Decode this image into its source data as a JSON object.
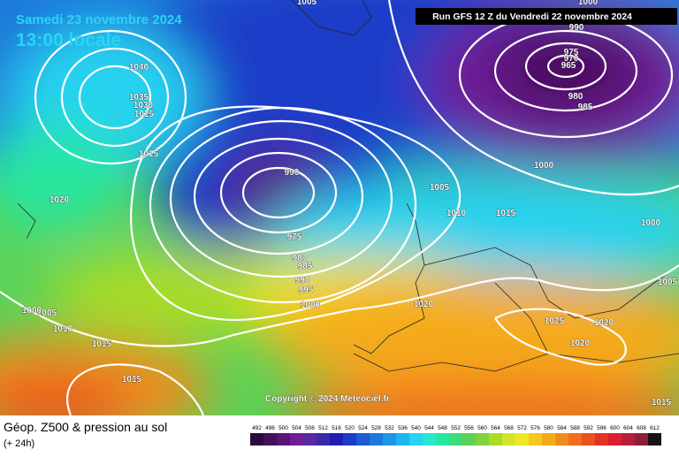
{
  "header": {
    "date": "Samedi 23 novembre 2024",
    "time": "13:00 locale",
    "run": "Run GFS 12 Z du Vendredi 22 novembre 2024"
  },
  "copyright": "Copyright © 2024 Meteociel.fr",
  "footer": {
    "title": "Géop. Z500 & pression au sol",
    "lead": "(+ 24h)"
  },
  "scale": {
    "labels": [
      492,
      496,
      500,
      504,
      508,
      512,
      516,
      520,
      524,
      528,
      532,
      536,
      540,
      544,
      548,
      552,
      556,
      560,
      564,
      568,
      572,
      576,
      580,
      584,
      588,
      592,
      596,
      600,
      604,
      608,
      612
    ],
    "colors": [
      "#2d0a3c",
      "#460f5a",
      "#5a1478",
      "#6e1e96",
      "#5a28a0",
      "#3c28aa",
      "#1e1eb4",
      "#1e3cc8",
      "#1e5ad2",
      "#1e78dc",
      "#1e96e6",
      "#1eb4f0",
      "#28d2f0",
      "#28e6d2",
      "#28e6a0",
      "#3cdc78",
      "#5ad25a",
      "#82d23c",
      "#aadc28",
      "#d2e628",
      "#f0e628",
      "#f5c81e",
      "#f5aa1e",
      "#f08c1e",
      "#f06e1e",
      "#eb501e",
      "#e63223",
      "#dc1e32",
      "#b41e3c",
      "#8c1e3c",
      "#141414"
    ]
  },
  "isobars": [
    1040,
    1035,
    1030,
    1025,
    1015,
    1020,
    1005,
    1000,
    990,
    975,
    970,
    965,
    980,
    985,
    1000,
    1005,
    1010,
    1015,
    1000,
    1005,
    975,
    980,
    985,
    990,
    995,
    1000,
    1020,
    1025,
    1020,
    1020,
    1005,
    1010,
    1015,
    1015,
    1015,
    1000,
    990
  ]
}
